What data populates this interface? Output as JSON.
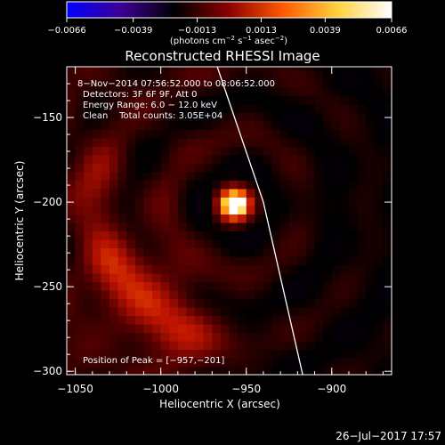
{
  "chart_data": {
    "type": "heatmap",
    "title": "Reconstructed RHESSI Image",
    "xlabel": "Heliocentric X (arcsec)",
    "ylabel": "Heliocentric Y (arcsec)",
    "xlim": [
      -1055,
      -865
    ],
    "ylim": [
      -302,
      -120
    ],
    "x_ticks": [
      -1050,
      -1000,
      -950,
      -900
    ],
    "x_tick_labels": [
      "−1050",
      "−1000",
      "−950",
      "−900"
    ],
    "y_ticks": [
      -150,
      -200,
      -250,
      -300
    ],
    "y_tick_labels": [
      "−150",
      "−200",
      "−250",
      "−300"
    ],
    "colorbar": {
      "ticks": [
        -0.0066,
        -0.0039,
        -0.0013,
        0.0013,
        0.0039,
        0.0066
      ],
      "tick_labels": [
        "−0.0066",
        "−0.0039",
        "−0.0013",
        "0.0013",
        "0.0039",
        "0.0066"
      ],
      "unit_prefix": "(photons cm",
      "unit_exp1": "−2",
      "unit_mid": " s",
      "unit_exp2": "−1",
      "unit_mid2": " asec",
      "unit_exp3": "−2",
      "unit_suffix": ")",
      "colormap": [
        "#0000ff",
        "#3c0096",
        "#000000",
        "#8c0000",
        "#ff5a00",
        "#ffd23c",
        "#ffffff"
      ]
    },
    "annotations": [
      "8−Nov−2014 07:56:52.000 to 08:06:52.000",
      "Detectors: 3F 6F 9F, Att 0",
      "Energy Range: 6.0 − 12.0 keV",
      "Clean    Total counts: 3.05E+04"
    ],
    "peak_label": "Position of Peak = [−957,−201]",
    "peak_xy": [
      -957,
      -201
    ],
    "peak_value": 0.0066,
    "secondary_sources": [
      {
        "x": -1025,
        "y": -240,
        "value": 0.0022
      },
      {
        "x": -1000,
        "y": -262,
        "value": 0.0018
      },
      {
        "x": -985,
        "y": -285,
        "value": 0.0015
      },
      {
        "x": -1045,
        "y": -190,
        "value": 0.0012
      }
    ],
    "limb_line": [
      [
        -967,
        -120
      ],
      [
        -940,
        -200
      ],
      [
        -917,
        -302
      ]
    ],
    "timestamp": "26−Jul−2017 17:57"
  }
}
